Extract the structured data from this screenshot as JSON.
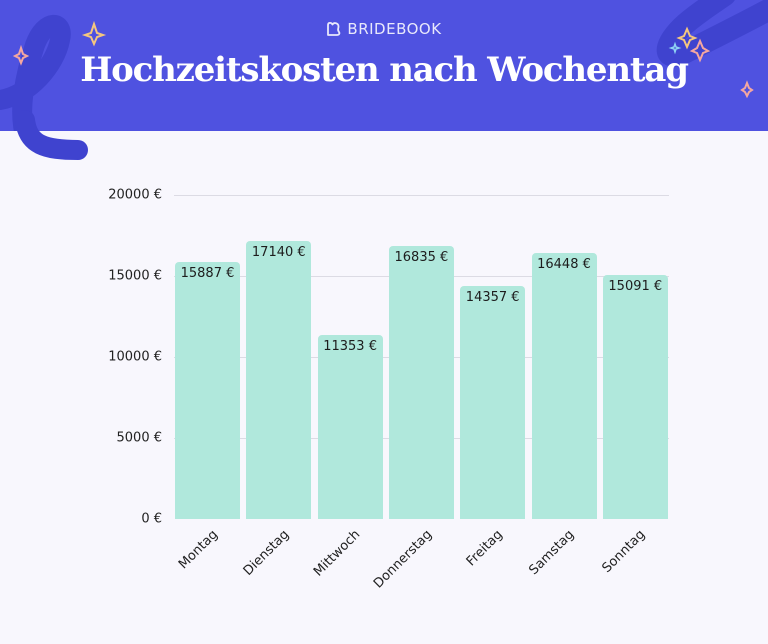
{
  "header": {
    "brand": "BRIDEBOOK",
    "title": "Hochzeitskosten nach Wochentag",
    "colors": {
      "background": "#4f52e0",
      "decoration": "#3f43cf",
      "sparkle_gold": "#f5c77e",
      "sparkle_pink": "#f4a7a0",
      "sparkle_blue": "#8fd3f4"
    }
  },
  "chart_data": {
    "type": "bar",
    "title": "Hochzeitskosten nach Wochentag",
    "xlabel": "",
    "ylabel": "",
    "categories": [
      "Montag",
      "Dienstag",
      "Mittwoch",
      "Donnerstag",
      "Freitag",
      "Samstag",
      "Sonntag"
    ],
    "values": [
      15887,
      17140,
      11353,
      16835,
      14357,
      16448,
      15091
    ],
    "value_labels": [
      "15887 €",
      "17140 €",
      "11353 €",
      "16835 €",
      "14357 €",
      "16448 €",
      "15091 €"
    ],
    "ylim": [
      0,
      20000
    ],
    "yticks": [
      0,
      5000,
      10000,
      15000,
      20000
    ],
    "ytick_labels": [
      "0 €",
      "5000 €",
      "10000 €",
      "15000 €",
      "20000 €"
    ],
    "grid": true,
    "legend": null,
    "bar_color": "#b0e8dc",
    "currency": "€"
  }
}
